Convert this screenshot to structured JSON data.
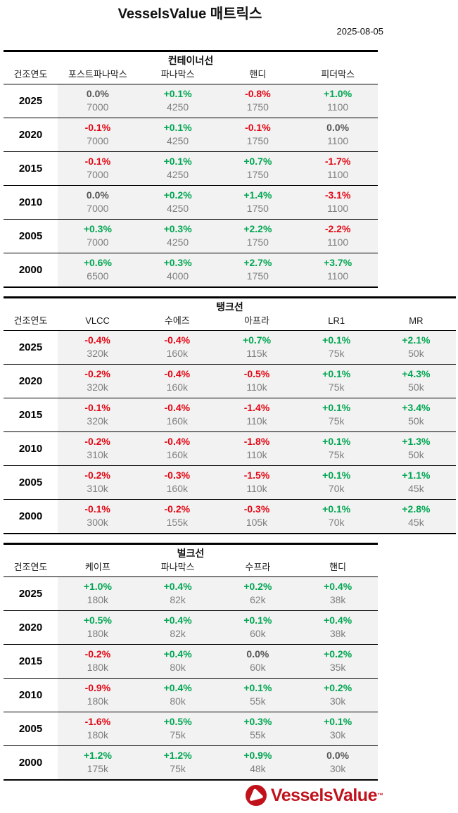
{
  "header": {
    "title": "VesselsValue 매트릭스",
    "date": "2025-08-05"
  },
  "chart_data": [
    {
      "type": "table",
      "title": "컨테이너선",
      "year_column_header": "건조연도",
      "columns": [
        "포스트파나막스",
        "파나막스",
        "핸디",
        "피더막스"
      ],
      "rows": [
        {
          "year": "2025",
          "cells": [
            {
              "change": "0.0%",
              "value": "7000"
            },
            {
              "change": "+0.1%",
              "value": "4250"
            },
            {
              "change": "-0.8%",
              "value": "1750"
            },
            {
              "change": "+1.0%",
              "value": "1100"
            }
          ]
        },
        {
          "year": "2020",
          "cells": [
            {
              "change": "-0.1%",
              "value": "7000"
            },
            {
              "change": "+0.1%",
              "value": "4250"
            },
            {
              "change": "-0.1%",
              "value": "1750"
            },
            {
              "change": "0.0%",
              "value": "1100"
            }
          ]
        },
        {
          "year": "2015",
          "cells": [
            {
              "change": "-0.1%",
              "value": "7000"
            },
            {
              "change": "+0.1%",
              "value": "4250"
            },
            {
              "change": "+0.7%",
              "value": "1750"
            },
            {
              "change": "-1.7%",
              "value": "1100"
            }
          ]
        },
        {
          "year": "2010",
          "cells": [
            {
              "change": "0.0%",
              "value": "7000"
            },
            {
              "change": "+0.2%",
              "value": "4250"
            },
            {
              "change": "+1.4%",
              "value": "1750"
            },
            {
              "change": "-3.1%",
              "value": "1100"
            }
          ]
        },
        {
          "year": "2005",
          "cells": [
            {
              "change": "+0.3%",
              "value": "7000"
            },
            {
              "change": "+0.3%",
              "value": "4250"
            },
            {
              "change": "+2.2%",
              "value": "1750"
            },
            {
              "change": "-2.2%",
              "value": "1100"
            }
          ]
        },
        {
          "year": "2000",
          "cells": [
            {
              "change": "+0.6%",
              "value": "6500"
            },
            {
              "change": "+0.3%",
              "value": "4000"
            },
            {
              "change": "+2.7%",
              "value": "1750"
            },
            {
              "change": "+3.7%",
              "value": "1100"
            }
          ]
        }
      ]
    },
    {
      "type": "table",
      "title": "탱크선",
      "year_column_header": "건조연도",
      "columns": [
        "VLCC",
        "수에즈",
        "아프라",
        "LR1",
        "MR"
      ],
      "rows": [
        {
          "year": "2025",
          "cells": [
            {
              "change": "-0.4%",
              "value": "320k"
            },
            {
              "change": "-0.4%",
              "value": "160k"
            },
            {
              "change": "+0.7%",
              "value": "115k"
            },
            {
              "change": "+0.1%",
              "value": "75k"
            },
            {
              "change": "+2.1%",
              "value": "50k"
            }
          ]
        },
        {
          "year": "2020",
          "cells": [
            {
              "change": "-0.2%",
              "value": "320k"
            },
            {
              "change": "-0.4%",
              "value": "160k"
            },
            {
              "change": "-0.5%",
              "value": "110k"
            },
            {
              "change": "+0.1%",
              "value": "75k"
            },
            {
              "change": "+4.3%",
              "value": "50k"
            }
          ]
        },
        {
          "year": "2015",
          "cells": [
            {
              "change": "-0.1%",
              "value": "320k"
            },
            {
              "change": "-0.4%",
              "value": "160k"
            },
            {
              "change": "-1.4%",
              "value": "110k"
            },
            {
              "change": "+0.1%",
              "value": "75k"
            },
            {
              "change": "+3.4%",
              "value": "50k"
            }
          ]
        },
        {
          "year": "2010",
          "cells": [
            {
              "change": "-0.2%",
              "value": "310k"
            },
            {
              "change": "-0.4%",
              "value": "160k"
            },
            {
              "change": "-1.8%",
              "value": "110k"
            },
            {
              "change": "+0.1%",
              "value": "75k"
            },
            {
              "change": "+1.3%",
              "value": "50k"
            }
          ]
        },
        {
          "year": "2005",
          "cells": [
            {
              "change": "-0.2%",
              "value": "310k"
            },
            {
              "change": "-0.3%",
              "value": "160k"
            },
            {
              "change": "-1.5%",
              "value": "110k"
            },
            {
              "change": "+0.1%",
              "value": "70k"
            },
            {
              "change": "+1.1%",
              "value": "45k"
            }
          ]
        },
        {
          "year": "2000",
          "cells": [
            {
              "change": "-0.1%",
              "value": "300k"
            },
            {
              "change": "-0.2%",
              "value": "155k"
            },
            {
              "change": "-0.3%",
              "value": "105k"
            },
            {
              "change": "+0.1%",
              "value": "70k"
            },
            {
              "change": "+2.8%",
              "value": "45k"
            }
          ]
        }
      ]
    },
    {
      "type": "table",
      "title": "벌크선",
      "year_column_header": "건조연도",
      "columns": [
        "케이프",
        "파나막스",
        "수프라",
        "핸디"
      ],
      "rows": [
        {
          "year": "2025",
          "cells": [
            {
              "change": "+1.0%",
              "value": "180k"
            },
            {
              "change": "+0.4%",
              "value": "82k"
            },
            {
              "change": "+0.2%",
              "value": "62k"
            },
            {
              "change": "+0.4%",
              "value": "38k"
            }
          ]
        },
        {
          "year": "2020",
          "cells": [
            {
              "change": "+0.5%",
              "value": "180k"
            },
            {
              "change": "+0.4%",
              "value": "82k"
            },
            {
              "change": "+0.1%",
              "value": "60k"
            },
            {
              "change": "+0.4%",
              "value": "38k"
            }
          ]
        },
        {
          "year": "2015",
          "cells": [
            {
              "change": "-0.2%",
              "value": "180k"
            },
            {
              "change": "+0.4%",
              "value": "80k"
            },
            {
              "change": "0.0%",
              "value": "60k"
            },
            {
              "change": "+0.2%",
              "value": "35k"
            }
          ]
        },
        {
          "year": "2010",
          "cells": [
            {
              "change": "-0.9%",
              "value": "180k"
            },
            {
              "change": "+0.4%",
              "value": "80k"
            },
            {
              "change": "+0.1%",
              "value": "55k"
            },
            {
              "change": "+0.2%",
              "value": "30k"
            }
          ]
        },
        {
          "year": "2005",
          "cells": [
            {
              "change": "-1.6%",
              "value": "180k"
            },
            {
              "change": "+0.5%",
              "value": "75k"
            },
            {
              "change": "+0.3%",
              "value": "55k"
            },
            {
              "change": "+0.1%",
              "value": "30k"
            }
          ]
        },
        {
          "year": "2000",
          "cells": [
            {
              "change": "+1.2%",
              "value": "175k"
            },
            {
              "change": "+1.2%",
              "value": "75k"
            },
            {
              "change": "+0.9%",
              "value": "48k"
            },
            {
              "change": "0.0%",
              "value": "30k"
            }
          ]
        }
      ]
    }
  ],
  "footer": {
    "brand": "VesselsValue",
    "trademark": "™",
    "logo_icon": "vesselsvalue-circle-triangle"
  },
  "colors": {
    "positive_green": "#00a651",
    "negative_red": "#e30613",
    "neutral_gray": "#555555",
    "value_gray": "#7f7f7f",
    "brand_red": "#c1121c",
    "row_background": "#f2f2f2"
  }
}
